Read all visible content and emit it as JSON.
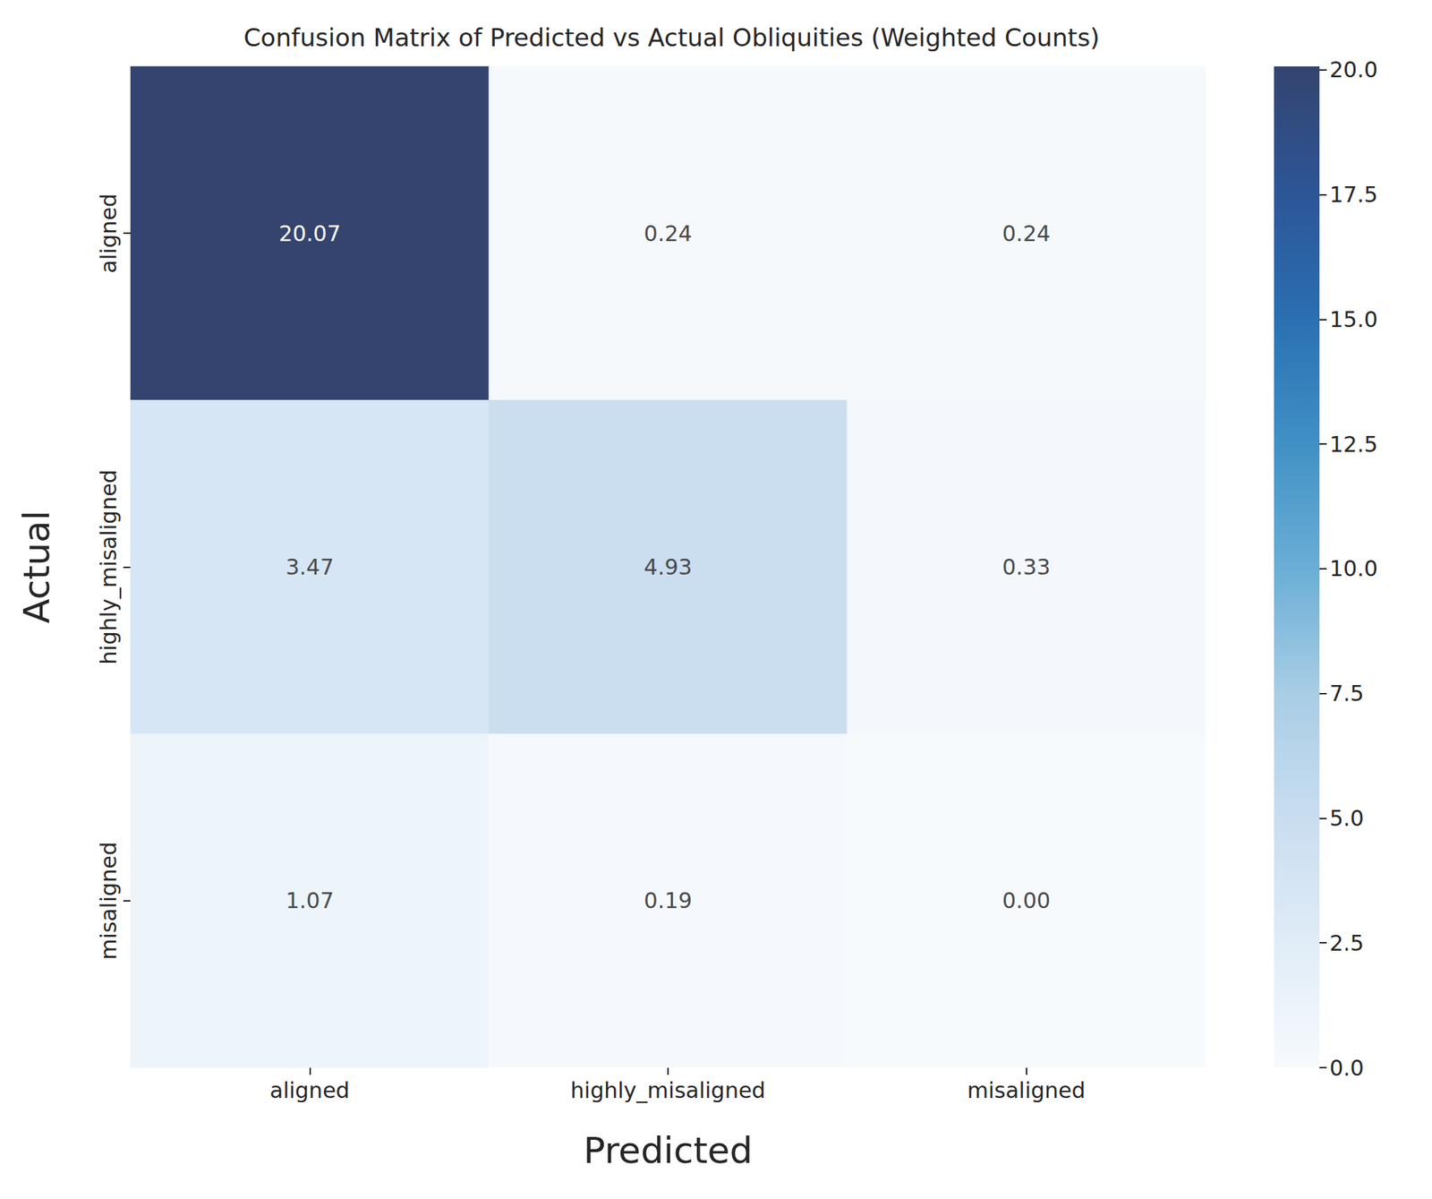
{
  "chart_data": {
    "type": "heatmap",
    "title": "Confusion Matrix of Predicted vs Actual Obliquities (Weighted Counts)",
    "x_label": "Predicted",
    "y_label": "Actual",
    "x_categories": [
      "aligned",
      "highly_misaligned",
      "misaligned"
    ],
    "y_categories": [
      "aligned",
      "highly_misaligned",
      "misaligned"
    ],
    "cells": [
      [
        20.07,
        0.24,
        0.24
      ],
      [
        3.47,
        4.93,
        0.33
      ],
      [
        1.07,
        0.19,
        0.0
      ]
    ],
    "value_labels": [
      [
        "20.07",
        "0.24",
        "0.24"
      ],
      [
        "3.47",
        "4.93",
        "0.33"
      ],
      [
        "1.07",
        "0.19",
        "0.00"
      ]
    ],
    "data_labels": true,
    "grid": false,
    "colorbar_range": [
      0,
      20.07
    ],
    "colorbar_ticks": [
      {
        "value": 0,
        "label": "0.0"
      },
      2.5,
      {
        "value": 5,
        "label": "5.0"
      },
      7.5,
      {
        "value": 10,
        "label": "10.0"
      },
      12.5,
      {
        "value": 15,
        "label": "15.0"
      },
      17.5,
      {
        "value": 20,
        "label": "20.0"
      }
    ]
  }
}
